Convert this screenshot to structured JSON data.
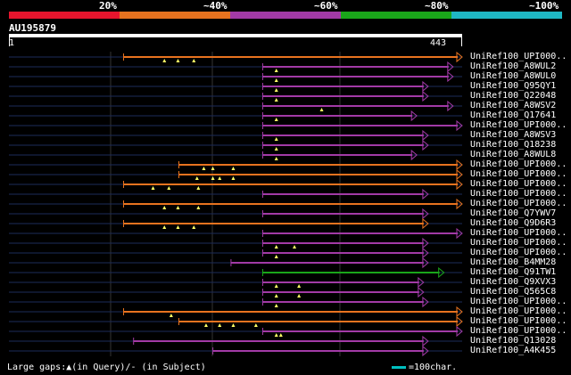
{
  "legend": {
    "colors": [
      "#e6152d",
      "#e8731f",
      "#a23aa6",
      "#1aa61a",
      "#1fb8c4"
    ],
    "labels": [
      "20%",
      "~40%",
      "~60%",
      "~80%",
      "~100%"
    ]
  },
  "query": {
    "name": "AU195879",
    "start": "1",
    "end": "443"
  },
  "hits": [
    {
      "label": "UniRef100_UPI000..",
      "color": "#e8731f",
      "start": 0.253,
      "end": 1.0,
      "gaps": [
        0.09,
        0.12,
        0.155
      ]
    },
    {
      "label": "UniRef100_A8WUL2",
      "color": "#a23aa6",
      "start": 0.56,
      "end": 0.98,
      "gaps": [
        0.03
      ]
    },
    {
      "label": "UniRef100_A8WUL0",
      "color": "#a23aa6",
      "start": 0.56,
      "end": 0.98,
      "gaps": [
        0.03
      ]
    },
    {
      "label": "UniRef100_Q95QY1",
      "color": "#a23aa6",
      "start": 0.56,
      "end": 0.925,
      "gaps": [
        0.03
      ]
    },
    {
      "label": "UniRef100_Q22048",
      "color": "#a23aa6",
      "start": 0.56,
      "end": 0.925,
      "gaps": [
        0.03
      ]
    },
    {
      "label": "UniRef100_A8WSV2",
      "color": "#a23aa6",
      "start": 0.56,
      "end": 0.98,
      "gaps": [
        0.13
      ]
    },
    {
      "label": "UniRef100_Q17641",
      "color": "#a23aa6",
      "start": 0.56,
      "end": 0.9,
      "gaps": [
        0.03
      ]
    },
    {
      "label": "UniRef100_UPI000..",
      "color": "#a23aa6",
      "start": 0.56,
      "end": 1.0,
      "gaps": []
    },
    {
      "label": "UniRef100_A8WSV3",
      "color": "#a23aa6",
      "start": 0.56,
      "end": 0.925,
      "gaps": [
        0.03
      ]
    },
    {
      "label": "UniRef100_Q18238",
      "color": "#a23aa6",
      "start": 0.56,
      "end": 0.925,
      "gaps": [
        0.03
      ]
    },
    {
      "label": "UniRef100_A8WUL8",
      "color": "#a23aa6",
      "start": 0.56,
      "end": 0.9,
      "gaps": [
        0.03
      ]
    },
    {
      "label": "UniRef100_UPI000..",
      "color": "#e8731f",
      "start": 0.375,
      "end": 1.0,
      "gaps": [
        0.055,
        0.075,
        0.12
      ]
    },
    {
      "label": "UniRef100_UPI000..",
      "color": "#e8731f",
      "start": 0.375,
      "end": 1.0,
      "gaps": [
        0.04,
        0.075,
        0.09,
        0.12
      ]
    },
    {
      "label": "UniRef100_UPI000..",
      "color": "#e8731f",
      "start": 0.253,
      "end": 1.0,
      "gaps": [
        0.065,
        0.1,
        0.165
      ]
    },
    {
      "label": "UniRef100_UPI000..",
      "color": "#a23aa6",
      "start": 0.56,
      "end": 0.925,
      "gaps": []
    },
    {
      "label": "UniRef100_UPI000..",
      "color": "#e8731f",
      "start": 0.253,
      "end": 1.0,
      "gaps": [
        0.09,
        0.12,
        0.165
      ]
    },
    {
      "label": "UniRef100_Q7YWV7",
      "color": "#a23aa6",
      "start": 0.56,
      "end": 0.925,
      "gaps": []
    },
    {
      "label": "UniRef100_Q9D6R3",
      "color": "#e8731f",
      "start": 0.253,
      "end": 0.925,
      "gaps": [
        0.09,
        0.12,
        0.155
      ]
    },
    {
      "label": "UniRef100_UPI000..",
      "color": "#a23aa6",
      "start": 0.56,
      "end": 1.0,
      "gaps": []
    },
    {
      "label": "UniRef100_UPI000..",
      "color": "#a23aa6",
      "start": 0.56,
      "end": 0.925,
      "gaps": [
        0.03,
        0.07
      ]
    },
    {
      "label": "UniRef100_UPI000..",
      "color": "#a23aa6",
      "start": 0.56,
      "end": 0.925,
      "gaps": [
        0.03
      ]
    },
    {
      "label": "UniRef100_B4MM28",
      "color": "#a23aa6",
      "start": 0.49,
      "end": 0.925,
      "gaps": []
    },
    {
      "label": "UniRef100_Q91TW1",
      "color": "#1aa61a",
      "start": 0.56,
      "end": 0.96,
      "gaps": []
    },
    {
      "label": "UniRef100_Q9XVX3",
      "color": "#a23aa6",
      "start": 0.56,
      "end": 0.915,
      "gaps": [
        0.03,
        0.08
      ]
    },
    {
      "label": "UniRef100_Q565C8",
      "color": "#a23aa6",
      "start": 0.56,
      "end": 0.915,
      "gaps": [
        0.03,
        0.08
      ]
    },
    {
      "label": "UniRef100_UPI000..",
      "color": "#a23aa6",
      "start": 0.56,
      "end": 0.925,
      "gaps": [
        0.03
      ]
    },
    {
      "label": "UniRef100_UPI000..",
      "color": "#e8731f",
      "start": 0.253,
      "end": 1.0,
      "gaps": [
        0.105
      ]
    },
    {
      "label": "UniRef100_UPI000..",
      "color": "#e8731f",
      "start": 0.375,
      "end": 1.0,
      "gaps": [
        0.06,
        0.09,
        0.12,
        0.17
      ]
    },
    {
      "label": "UniRef100_UPI000..",
      "color": "#a23aa6",
      "start": 0.56,
      "end": 1.0,
      "gaps": [
        0.03,
        0.04
      ]
    },
    {
      "label": "UniRef100_Q13028",
      "color": "#a23aa6",
      "start": 0.275,
      "end": 0.925,
      "gaps": []
    },
    {
      "label": "UniRef100_A4K455",
      "color": "#a23aa6",
      "start": 0.45,
      "end": 0.925,
      "gaps": []
    }
  ],
  "footer": {
    "gaps_text": "Large gaps:▲(in Query)/- (in Subject)",
    "scale_text": "=100char.",
    "scale_color": "#00bfbf"
  }
}
